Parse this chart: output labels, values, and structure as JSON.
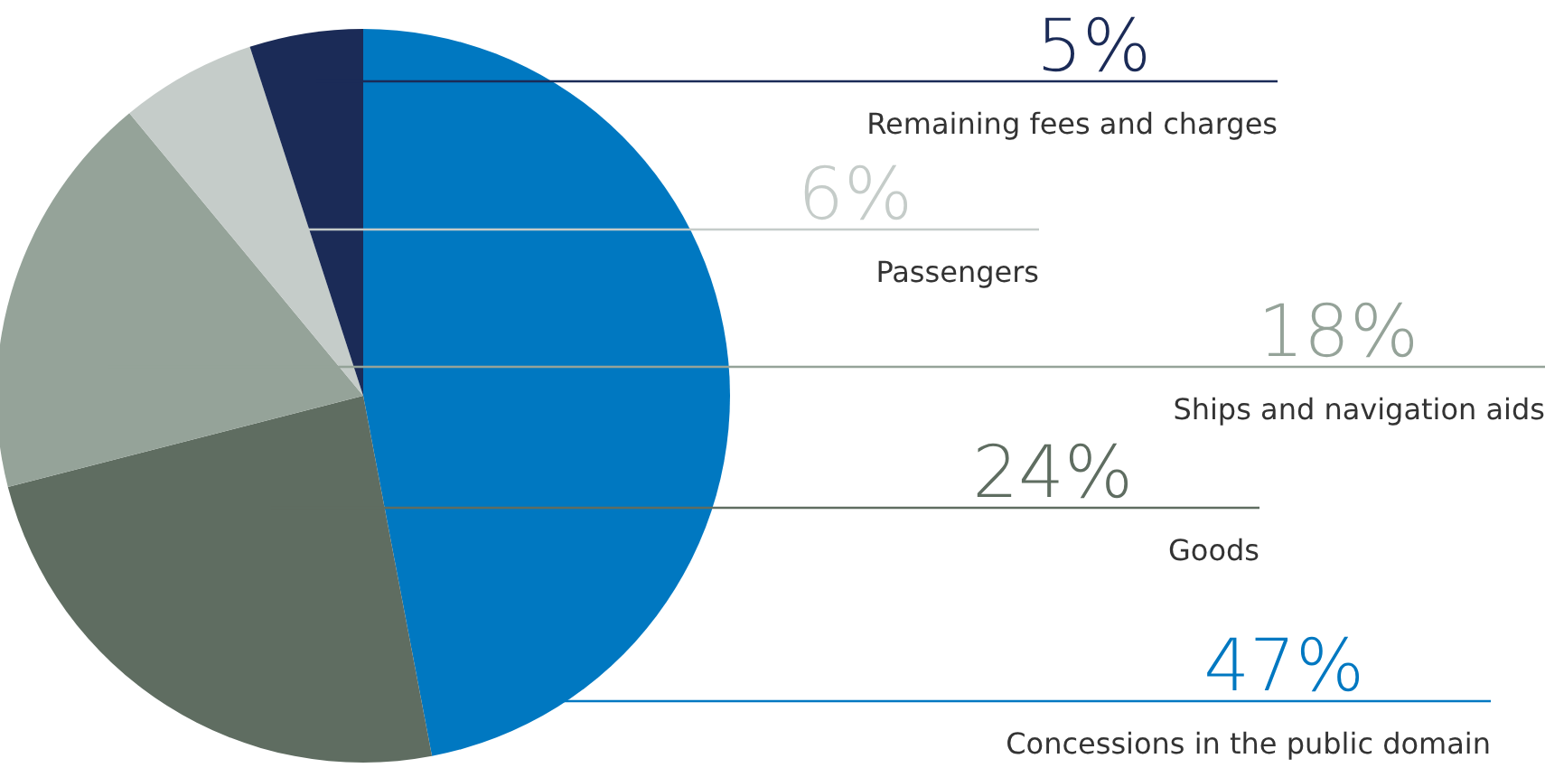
{
  "chart_data": {
    "type": "pie",
    "categories": [
      "Concessions in the public domain",
      "Goods",
      "Ships and navigation aids",
      "Passengers",
      "Remaining fees and charges"
    ],
    "values": [
      47,
      24,
      18,
      6,
      5
    ],
    "value_labels": [
      "47%",
      "24%",
      "18%",
      "6%",
      "5%"
    ],
    "colors": [
      "#0078c1",
      "#5f6d61",
      "#95a399",
      "#c5ccc9",
      "#1b2b57"
    ]
  }
}
